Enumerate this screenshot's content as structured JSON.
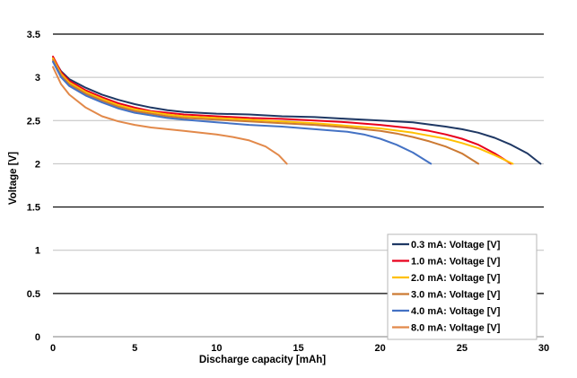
{
  "chart_data": {
    "type": "line",
    "title": "",
    "xlabel": "Discharge capacity [mAh]",
    "ylabel": "Voltage [V]",
    "xlim": [
      0,
      30
    ],
    "ylim": [
      0,
      3.5
    ],
    "x_ticks": [
      "0",
      "5",
      "10",
      "15",
      "20",
      "25",
      "30"
    ],
    "y_ticks": [
      "0",
      "0.5",
      "1",
      "1.5",
      "2",
      "2.5",
      "3",
      "3.5"
    ],
    "grid": "horizontal",
    "legend_position": "bottom-right",
    "series": [
      {
        "name": "0.3 mA: Voltage [V]",
        "color": "#1f3864",
        "points": [
          [
            0,
            3.22
          ],
          [
            0.5,
            3.07
          ],
          [
            1,
            2.98
          ],
          [
            2,
            2.88
          ],
          [
            3,
            2.8
          ],
          [
            4,
            2.74
          ],
          [
            5,
            2.69
          ],
          [
            6,
            2.65
          ],
          [
            7,
            2.62
          ],
          [
            8,
            2.6
          ],
          [
            10,
            2.58
          ],
          [
            12,
            2.57
          ],
          [
            14,
            2.55
          ],
          [
            16,
            2.54
          ],
          [
            18,
            2.52
          ],
          [
            20,
            2.5
          ],
          [
            22,
            2.48
          ],
          [
            24,
            2.43
          ],
          [
            25,
            2.4
          ],
          [
            26,
            2.36
          ],
          [
            27,
            2.3
          ],
          [
            28,
            2.22
          ],
          [
            29,
            2.12
          ],
          [
            29.8,
            2.0
          ]
        ]
      },
      {
        "name": "1.0 mA: Voltage [V]",
        "color": "#e8001c",
        "points": [
          [
            0,
            3.24
          ],
          [
            0.5,
            3.06
          ],
          [
            1,
            2.96
          ],
          [
            2,
            2.85
          ],
          [
            3,
            2.77
          ],
          [
            4,
            2.7
          ],
          [
            5,
            2.65
          ],
          [
            6,
            2.61
          ],
          [
            7,
            2.59
          ],
          [
            8,
            2.57
          ],
          [
            10,
            2.55
          ],
          [
            12,
            2.53
          ],
          [
            14,
            2.52
          ],
          [
            16,
            2.5
          ],
          [
            18,
            2.48
          ],
          [
            20,
            2.45
          ],
          [
            22,
            2.41
          ],
          [
            23,
            2.38
          ],
          [
            24,
            2.34
          ],
          [
            25,
            2.29
          ],
          [
            26,
            2.22
          ],
          [
            27,
            2.12
          ],
          [
            28,
            2.0
          ]
        ]
      },
      {
        "name": "2.0 mA: Voltage [V]",
        "color": "#ffc000",
        "points": [
          [
            0,
            3.22
          ],
          [
            0.5,
            3.04
          ],
          [
            1,
            2.94
          ],
          [
            2,
            2.83
          ],
          [
            3,
            2.75
          ],
          [
            4,
            2.68
          ],
          [
            5,
            2.63
          ],
          [
            6,
            2.6
          ],
          [
            7,
            2.57
          ],
          [
            8,
            2.55
          ],
          [
            10,
            2.53
          ],
          [
            12,
            2.51
          ],
          [
            14,
            2.49
          ],
          [
            16,
            2.47
          ],
          [
            18,
            2.44
          ],
          [
            20,
            2.41
          ],
          [
            22,
            2.36
          ],
          [
            24,
            2.29
          ],
          [
            25,
            2.24
          ],
          [
            26,
            2.18
          ],
          [
            27,
            2.1
          ],
          [
            28.1,
            2.0
          ]
        ]
      },
      {
        "name": "3.0 mA: Voltage [V]",
        "color": "#cc7a33",
        "points": [
          [
            0,
            3.2
          ],
          [
            0.5,
            3.02
          ],
          [
            1,
            2.92
          ],
          [
            2,
            2.81
          ],
          [
            3,
            2.73
          ],
          [
            4,
            2.66
          ],
          [
            5,
            2.61
          ],
          [
            6,
            2.58
          ],
          [
            7,
            2.55
          ],
          [
            8,
            2.53
          ],
          [
            10,
            2.51
          ],
          [
            12,
            2.49
          ],
          [
            14,
            2.47
          ],
          [
            16,
            2.45
          ],
          [
            18,
            2.42
          ],
          [
            20,
            2.38
          ],
          [
            21,
            2.35
          ],
          [
            22,
            2.31
          ],
          [
            23,
            2.26
          ],
          [
            24,
            2.2
          ],
          [
            25,
            2.12
          ],
          [
            26,
            2.0
          ]
        ]
      },
      {
        "name": "4.0 mA: Voltage [V]",
        "color": "#4472c4",
        "points": [
          [
            0,
            3.18
          ],
          [
            0.5,
            3.0
          ],
          [
            1,
            2.9
          ],
          [
            2,
            2.79
          ],
          [
            3,
            2.71
          ],
          [
            4,
            2.64
          ],
          [
            5,
            2.59
          ],
          [
            6,
            2.56
          ],
          [
            7,
            2.53
          ],
          [
            8,
            2.51
          ],
          [
            10,
            2.48
          ],
          [
            12,
            2.45
          ],
          [
            14,
            2.43
          ],
          [
            16,
            2.4
          ],
          [
            18,
            2.37
          ],
          [
            19,
            2.34
          ],
          [
            20,
            2.29
          ],
          [
            21,
            2.22
          ],
          [
            22,
            2.13
          ],
          [
            23.1,
            2.0
          ]
        ]
      },
      {
        "name": "8.0 mA: Voltage [V]",
        "color": "#e2894a",
        "points": [
          [
            0,
            3.12
          ],
          [
            0.5,
            2.92
          ],
          [
            1,
            2.8
          ],
          [
            2,
            2.65
          ],
          [
            3,
            2.55
          ],
          [
            4,
            2.49
          ],
          [
            5,
            2.45
          ],
          [
            6,
            2.42
          ],
          [
            7,
            2.4
          ],
          [
            8,
            2.38
          ],
          [
            9,
            2.36
          ],
          [
            10,
            2.34
          ],
          [
            11,
            2.31
          ],
          [
            12,
            2.27
          ],
          [
            13,
            2.2
          ],
          [
            13.8,
            2.1
          ],
          [
            14.3,
            2.0
          ]
        ]
      }
    ]
  }
}
